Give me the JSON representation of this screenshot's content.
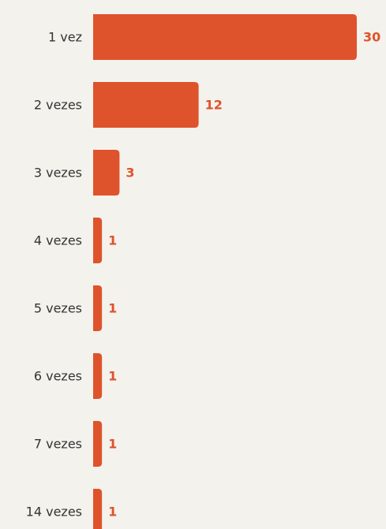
{
  "chart_data": {
    "type": "bar",
    "orientation": "horizontal",
    "categories": [
      "1 vez",
      "2 vezes",
      "3 vezes",
      "4 vezes",
      "5 vezes",
      "6 vezes",
      "7 vezes",
      "14 vezes"
    ],
    "values": [
      30,
      12,
      3,
      1,
      1,
      1,
      1,
      1
    ],
    "color": "#de532b"
  }
}
